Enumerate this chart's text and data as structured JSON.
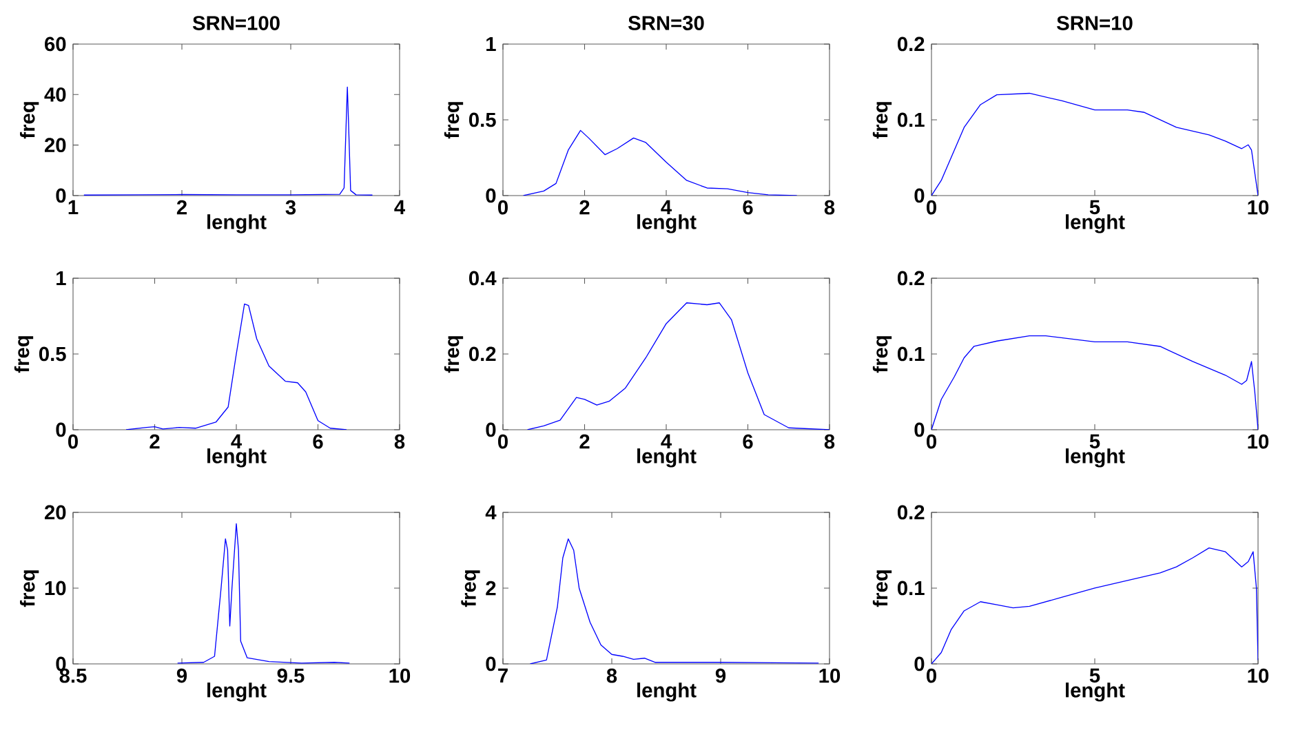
{
  "chart_data": [
    {
      "type": "line",
      "title": "SRN=100",
      "xlabel": "lenght",
      "ylabel": "freq",
      "xlim": [
        1,
        4
      ],
      "ylim": [
        0,
        60
      ],
      "xticks": [
        1,
        2,
        3,
        4
      ],
      "yticks": [
        0,
        20,
        40,
        60
      ],
      "color": "#0000ff",
      "x": [
        1.1,
        1.6,
        2.0,
        2.5,
        3.0,
        3.45,
        3.49,
        3.51,
        3.52,
        3.53,
        3.55,
        3.6,
        3.75
      ],
      "values": [
        0.2,
        0.3,
        0.4,
        0.3,
        0.3,
        0.5,
        3,
        30,
        43,
        30,
        2,
        0.3,
        0.2
      ]
    },
    {
      "type": "line",
      "title": "SRN=30",
      "xlabel": "lenght",
      "ylabel": "freq",
      "xlim": [
        0,
        8
      ],
      "ylim": [
        0,
        1
      ],
      "xticks": [
        0,
        2,
        4,
        6,
        8
      ],
      "yticks": [
        0,
        0.5,
        1
      ],
      "color": "#0000ff",
      "x": [
        0.5,
        1.0,
        1.3,
        1.6,
        1.9,
        2.1,
        2.5,
        2.8,
        3.2,
        3.5,
        4.0,
        4.5,
        5.0,
        5.5,
        6.0,
        6.5,
        7.2
      ],
      "values": [
        0,
        0.03,
        0.08,
        0.3,
        0.43,
        0.38,
        0.27,
        0.31,
        0.38,
        0.35,
        0.22,
        0.1,
        0.05,
        0.045,
        0.02,
        0.005,
        0
      ]
    },
    {
      "type": "line",
      "title": "SRN=10",
      "xlabel": "lenght",
      "ylabel": "freq",
      "xlim": [
        0,
        10
      ],
      "ylim": [
        0,
        0.2
      ],
      "xticks": [
        0,
        5,
        10
      ],
      "yticks": [
        0,
        0.1,
        0.2
      ],
      "color": "#0000ff",
      "x": [
        0,
        0.3,
        0.7,
        1.0,
        1.5,
        2.0,
        3.0,
        4.0,
        5.0,
        6.0,
        6.5,
        7.5,
        8.5,
        9.0,
        9.5,
        9.7,
        9.8,
        10
      ],
      "values": [
        0,
        0.02,
        0.06,
        0.09,
        0.12,
        0.133,
        0.135,
        0.125,
        0.113,
        0.113,
        0.11,
        0.09,
        0.08,
        0.072,
        0.062,
        0.067,
        0.06,
        0
      ]
    },
    {
      "type": "line",
      "xlabel": "lenght",
      "ylabel": "freq",
      "xlim": [
        0,
        8
      ],
      "ylim": [
        0,
        1
      ],
      "xticks": [
        0,
        2,
        4,
        6,
        8
      ],
      "yticks": [
        0,
        0.5,
        1
      ],
      "color": "#0000ff",
      "x": [
        1.3,
        1.8,
        2.0,
        2.2,
        2.6,
        3.0,
        3.5,
        3.8,
        4.0,
        4.2,
        4.3,
        4.5,
        4.8,
        5.2,
        5.5,
        5.7,
        6.0,
        6.3,
        6.7
      ],
      "values": [
        0,
        0.015,
        0.02,
        0.005,
        0.015,
        0.01,
        0.05,
        0.15,
        0.5,
        0.83,
        0.82,
        0.6,
        0.42,
        0.32,
        0.31,
        0.25,
        0.06,
        0.01,
        0
      ]
    },
    {
      "type": "line",
      "xlabel": "lenght",
      "ylabel": "freq",
      "xlim": [
        0,
        8
      ],
      "ylim": [
        0,
        0.4
      ],
      "xticks": [
        0,
        2,
        4,
        6,
        8
      ],
      "yticks": [
        0,
        0.2,
        0.4
      ],
      "color": "#0000ff",
      "x": [
        0.6,
        1.0,
        1.4,
        1.8,
        2.0,
        2.3,
        2.6,
        3.0,
        3.5,
        4.0,
        4.5,
        5.0,
        5.3,
        5.6,
        6.0,
        6.4,
        7.0,
        8.0
      ],
      "values": [
        0,
        0.01,
        0.025,
        0.085,
        0.08,
        0.065,
        0.075,
        0.11,
        0.19,
        0.28,
        0.335,
        0.33,
        0.335,
        0.29,
        0.15,
        0.04,
        0.005,
        0
      ]
    },
    {
      "type": "line",
      "xlabel": "lenght",
      "ylabel": "freq",
      "xlim": [
        0,
        10
      ],
      "ylim": [
        0,
        0.2
      ],
      "xticks": [
        0,
        5,
        10
      ],
      "yticks": [
        0,
        0.1,
        0.2
      ],
      "color": "#0000ff",
      "x": [
        0,
        0.3,
        0.7,
        1.0,
        1.3,
        2.0,
        3.0,
        3.5,
        5.0,
        6.0,
        7.0,
        8.0,
        9.0,
        9.5,
        9.65,
        9.8,
        9.9,
        10
      ],
      "values": [
        0,
        0.04,
        0.07,
        0.095,
        0.11,
        0.117,
        0.124,
        0.124,
        0.116,
        0.116,
        0.11,
        0.09,
        0.072,
        0.06,
        0.065,
        0.09,
        0.05,
        0
      ]
    },
    {
      "type": "line",
      "xlabel": "lenght",
      "ylabel": "freq",
      "xlim": [
        8.5,
        10
      ],
      "ylim": [
        0,
        20
      ],
      "xticks": [
        8.5,
        9,
        9.5,
        10
      ],
      "yticks": [
        0,
        10,
        20
      ],
      "color": "#0000ff",
      "x": [
        8.98,
        9.1,
        9.15,
        9.18,
        9.2,
        9.21,
        9.22,
        9.23,
        9.25,
        9.26,
        9.27,
        9.3,
        9.4,
        9.55,
        9.7,
        9.77
      ],
      "values": [
        0.1,
        0.2,
        1,
        10,
        16.5,
        15,
        5,
        10,
        18.5,
        15,
        3,
        0.8,
        0.3,
        0.1,
        0.2,
        0.1
      ]
    },
    {
      "type": "line",
      "xlabel": "lenght",
      "ylabel": "freq",
      "xlim": [
        7,
        10
      ],
      "ylim": [
        0,
        4
      ],
      "xticks": [
        7,
        8,
        9,
        10
      ],
      "yticks": [
        0,
        2,
        4
      ],
      "color": "#0000ff",
      "x": [
        7.25,
        7.4,
        7.5,
        7.55,
        7.6,
        7.65,
        7.7,
        7.8,
        7.9,
        8.0,
        8.1,
        8.2,
        8.3,
        8.4,
        9.0,
        9.5,
        9.9
      ],
      "values": [
        0,
        0.1,
        1.5,
        2.8,
        3.3,
        3.0,
        2.0,
        1.1,
        0.5,
        0.25,
        0.2,
        0.12,
        0.15,
        0.04,
        0.04,
        0.03,
        0.02
      ]
    },
    {
      "type": "line",
      "xlabel": "lenght",
      "ylabel": "freq",
      "xlim": [
        0,
        10
      ],
      "ylim": [
        0,
        0.2
      ],
      "xticks": [
        0,
        5,
        10
      ],
      "yticks": [
        0,
        0.1,
        0.2
      ],
      "color": "#0000ff",
      "x": [
        0,
        0.3,
        0.6,
        1.0,
        1.5,
        2.0,
        2.5,
        3.0,
        4.0,
        5.0,
        6.0,
        7.0,
        7.5,
        8.0,
        8.5,
        9.0,
        9.5,
        9.7,
        9.85,
        9.95,
        10
      ],
      "values": [
        0,
        0.015,
        0.045,
        0.07,
        0.082,
        0.078,
        0.074,
        0.076,
        0.088,
        0.1,
        0.11,
        0.12,
        0.128,
        0.14,
        0.153,
        0.148,
        0.128,
        0.135,
        0.148,
        0.1,
        0.005
      ]
    }
  ]
}
